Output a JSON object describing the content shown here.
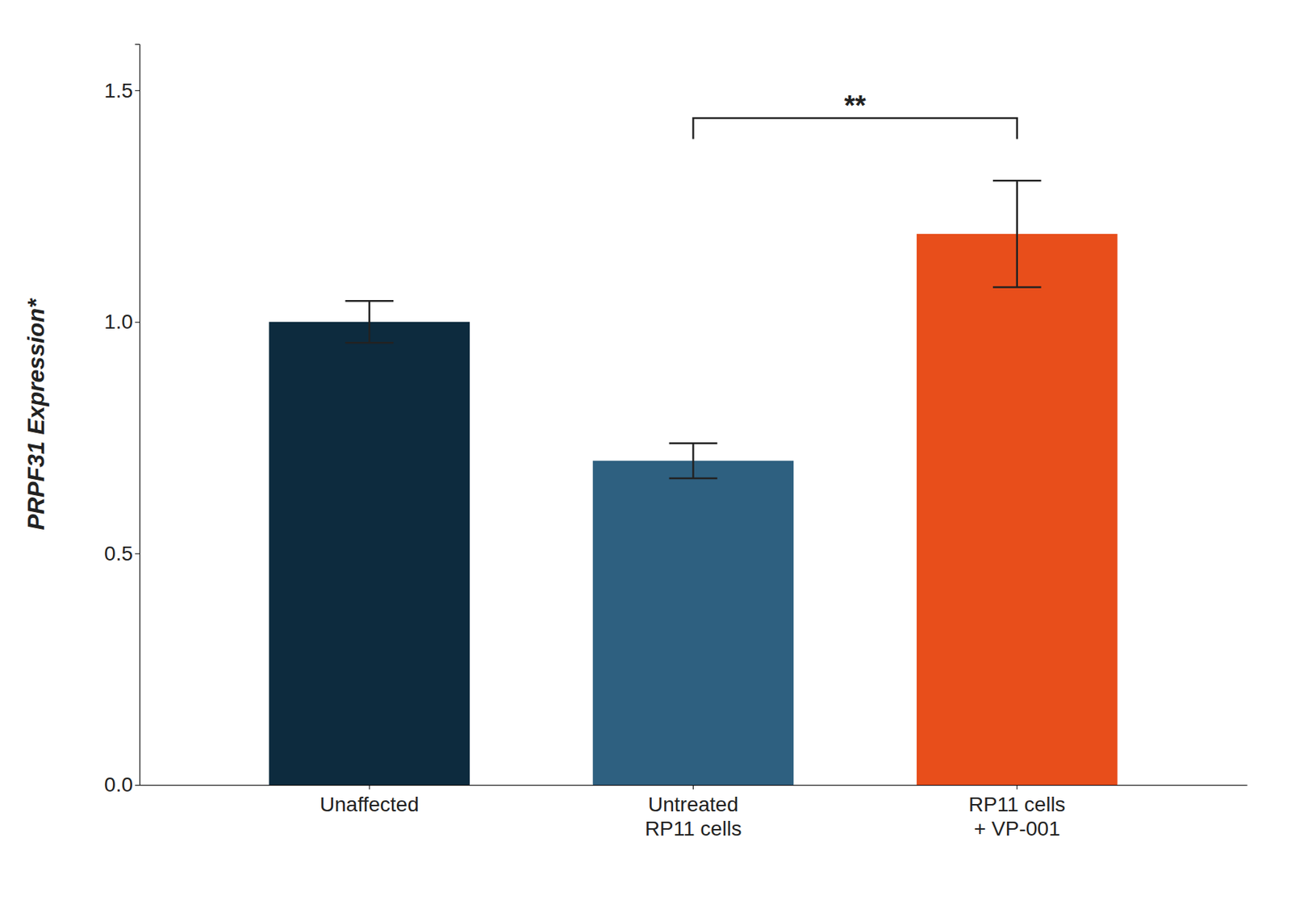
{
  "chart_data": {
    "type": "bar",
    "y_label": "PRPF31 Expression*",
    "categories": [
      "Unaffected",
      "Untreated\nRP11 cells",
      "RP11 cells\n+ VP-001"
    ],
    "values": [
      1.0,
      0.7,
      1.19
    ],
    "errors": [
      0.045,
      0.038,
      0.115
    ],
    "colors": [
      "#0d2b3e",
      "#2e6080",
      "#e84e1b"
    ],
    "ylim": [
      0,
      1.6
    ],
    "yticks": [
      {
        "value": 0.0,
        "label": "0.0"
      },
      0.5,
      {
        "value": 1.0,
        "label": "1.0"
      },
      1.5
    ],
    "grid": false,
    "annotations": [
      {
        "text": "**",
        "between": [
          1,
          2
        ],
        "y": 1.44,
        "drop": 0.045
      }
    ]
  }
}
